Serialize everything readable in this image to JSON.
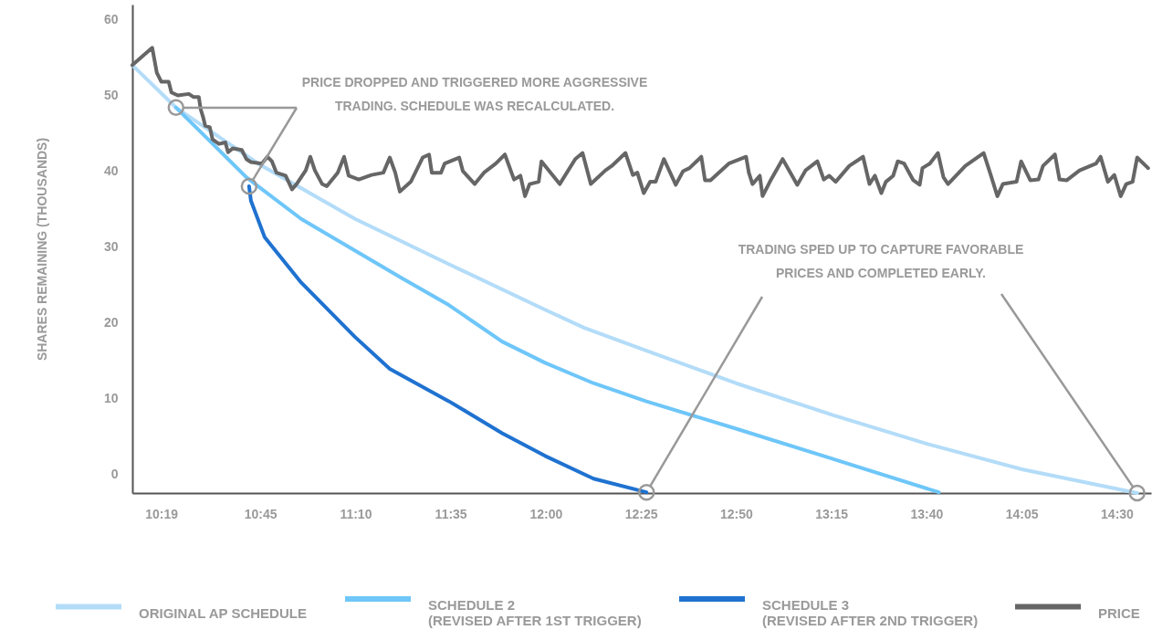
{
  "chart_data": {
    "type": "line",
    "ylabel": "SHARES REMAINING (THOUSANDS)",
    "xlim": [
      10.19,
      14.65
    ],
    "ylim": [
      -2.5,
      62
    ],
    "xticks": [
      {
        "value": 10.3167,
        "label": "10:19"
      },
      {
        "value": 10.75,
        "label": "10:45"
      },
      {
        "value": 11.1667,
        "label": "11:10"
      },
      {
        "value": 11.5833,
        "label": "11:35"
      },
      {
        "value": 12,
        "label": "12:00"
      },
      {
        "value": 12.4167,
        "label": "12:25"
      },
      {
        "value": 12.8333,
        "label": "12:50"
      },
      {
        "value": 13.25,
        "label": "13:15"
      },
      {
        "value": 13.6667,
        "label": "13:40"
      },
      {
        "value": 14.0833,
        "label": "14:05"
      },
      {
        "value": 14.5,
        "label": "14:30"
      }
    ],
    "yticks": [
      0,
      10,
      20,
      30,
      40,
      50,
      60
    ],
    "legend": "bottom",
    "line_style": "solid",
    "annotations": [
      "PRICE DROPPED AND TRIGGERED MORE AGGRESSIVE\nTRADING. SCHEDULE WAS RECALCULATED.",
      "TRADING SPED UP TO CAPTURE FAVORABLE\nPRICES AND COMPLETED EARLY."
    ],
    "series": [
      {
        "name": "ORIGINAL AP SCHEDULE",
        "color": "#b3dcf8",
        "x": [
          10.19,
          10.381,
          10.741,
          11.165,
          11.577,
          11.997,
          12.169,
          12.441,
          12.833,
          13.257,
          13.669,
          14.089,
          14.589
        ],
        "values": [
          54.0,
          48.4,
          41.0,
          33.7,
          27.7,
          21.7,
          19.3,
          16.3,
          12.0,
          7.8,
          4.0,
          0.6,
          -2.5
        ]
      },
      {
        "name": "SCHEDULE 2\n(REVISED AFTER 1ST TRIGGER)",
        "color": "#6ec6f9",
        "x": [
          10.381,
          10.529,
          10.689,
          10.741,
          10.929,
          11.165,
          11.369,
          11.577,
          11.809,
          11.997,
          12.209,
          12.441,
          12.833,
          13.257,
          13.721
        ],
        "values": [
          48.4,
          44.0,
          39.2,
          38.0,
          33.7,
          29.5,
          25.9,
          22.3,
          17.5,
          14.7,
          12.0,
          9.6,
          6.0,
          2.0,
          -2.4
        ]
      },
      {
        "name": "SCHEDULE 3\n(REVISED AFTER 2ND TRIGGER)",
        "color": "#1f72d0",
        "x": [
          10.701,
          10.709,
          10.769,
          10.929,
          11.165,
          11.317,
          11.577,
          11.809,
          11.997,
          12.209,
          12.441
        ],
        "values": [
          38.0,
          36.1,
          31.3,
          25.3,
          18.1,
          13.9,
          9.6,
          5.4,
          2.4,
          -0.6,
          -2.4
        ]
      },
      {
        "name": "PRICE",
        "color": "#666666",
        "x": [
          10.19,
          10.277,
          10.297,
          10.317,
          10.349,
          10.361,
          10.389,
          10.437,
          10.457,
          10.481,
          10.489,
          10.501,
          10.509,
          10.529,
          10.541,
          10.569,
          10.597,
          10.609,
          10.629,
          10.669,
          10.689,
          10.709,
          10.757,
          10.781,
          10.801,
          10.821,
          10.861,
          10.889,
          10.909,
          10.949,
          10.969,
          10.989,
          11.021,
          11.041,
          11.089,
          11.117,
          11.137,
          11.181,
          11.237,
          11.289,
          11.317,
          11.341,
          11.361,
          11.409,
          11.461,
          11.489,
          11.501,
          11.541,
          11.557,
          11.621,
          11.637,
          11.689,
          11.729,
          11.781,
          11.821,
          11.861,
          11.889,
          11.909,
          11.929,
          11.969,
          11.981,
          12.061,
          12.129,
          12.161,
          12.197,
          12.261,
          12.289,
          12.349,
          12.381,
          12.401,
          12.429,
          12.457,
          12.481,
          12.517,
          12.569,
          12.601,
          12.629,
          12.681,
          12.697,
          12.721,
          12.801,
          12.877,
          12.889,
          12.905,
          12.937,
          12.949,
          12.981,
          13.037,
          13.101,
          13.137,
          13.189,
          13.217,
          13.241,
          13.269,
          13.329,
          13.389,
          13.417,
          13.441,
          13.469,
          13.489,
          13.521,
          13.541,
          13.569,
          13.609,
          13.637,
          13.649,
          13.681,
          13.717,
          13.741,
          13.761,
          13.837,
          13.917,
          13.949,
          13.977,
          14.001,
          14.061,
          14.081,
          14.121,
          14.157,
          14.177,
          14.229,
          14.249,
          14.281,
          14.337,
          14.409,
          14.429,
          14.461,
          14.489,
          14.517,
          14.541,
          14.569,
          14.589,
          14.637
        ],
        "values": [
          54.0,
          56.3,
          53.0,
          51.8,
          51.8,
          50.4,
          50.0,
          50.2,
          49.8,
          49.8,
          48.2,
          47.0,
          46.0,
          45.8,
          44.2,
          43.6,
          43.8,
          42.5,
          43.0,
          42.8,
          41.6,
          41.2,
          41.0,
          41.9,
          41.3,
          39.8,
          39.4,
          37.6,
          38.3,
          40.1,
          41.9,
          40.1,
          38.3,
          38.0,
          39.8,
          41.9,
          39.4,
          38.9,
          39.5,
          39.8,
          41.8,
          39.8,
          37.3,
          38.6,
          41.8,
          42.2,
          39.8,
          39.8,
          41.0,
          41.8,
          40.0,
          38.3,
          39.8,
          41.0,
          42.2,
          38.9,
          39.4,
          36.7,
          38.3,
          38.6,
          41.3,
          38.3,
          41.6,
          42.4,
          38.3,
          40.1,
          40.7,
          42.4,
          39.5,
          39.8,
          37.1,
          38.6,
          38.6,
          41.6,
          38.2,
          40.0,
          40.4,
          41.9,
          38.8,
          38.8,
          41.0,
          41.9,
          39.8,
          38.3,
          39.4,
          36.7,
          38.6,
          41.6,
          38.2,
          40.1,
          41.3,
          38.9,
          39.4,
          38.6,
          40.7,
          41.9,
          38.3,
          39.4,
          37.1,
          38.6,
          39.4,
          41.3,
          41.0,
          38.8,
          38.2,
          40.4,
          41.0,
          42.4,
          39.2,
          38.3,
          40.7,
          42.4,
          39.4,
          36.7,
          38.3,
          38.6,
          41.3,
          38.8,
          38.9,
          40.7,
          42.2,
          38.9,
          38.8,
          40.1,
          41.0,
          41.9,
          38.6,
          39.5,
          36.7,
          38.3,
          38.6,
          41.8,
          40.4
        ]
      }
    ]
  }
}
